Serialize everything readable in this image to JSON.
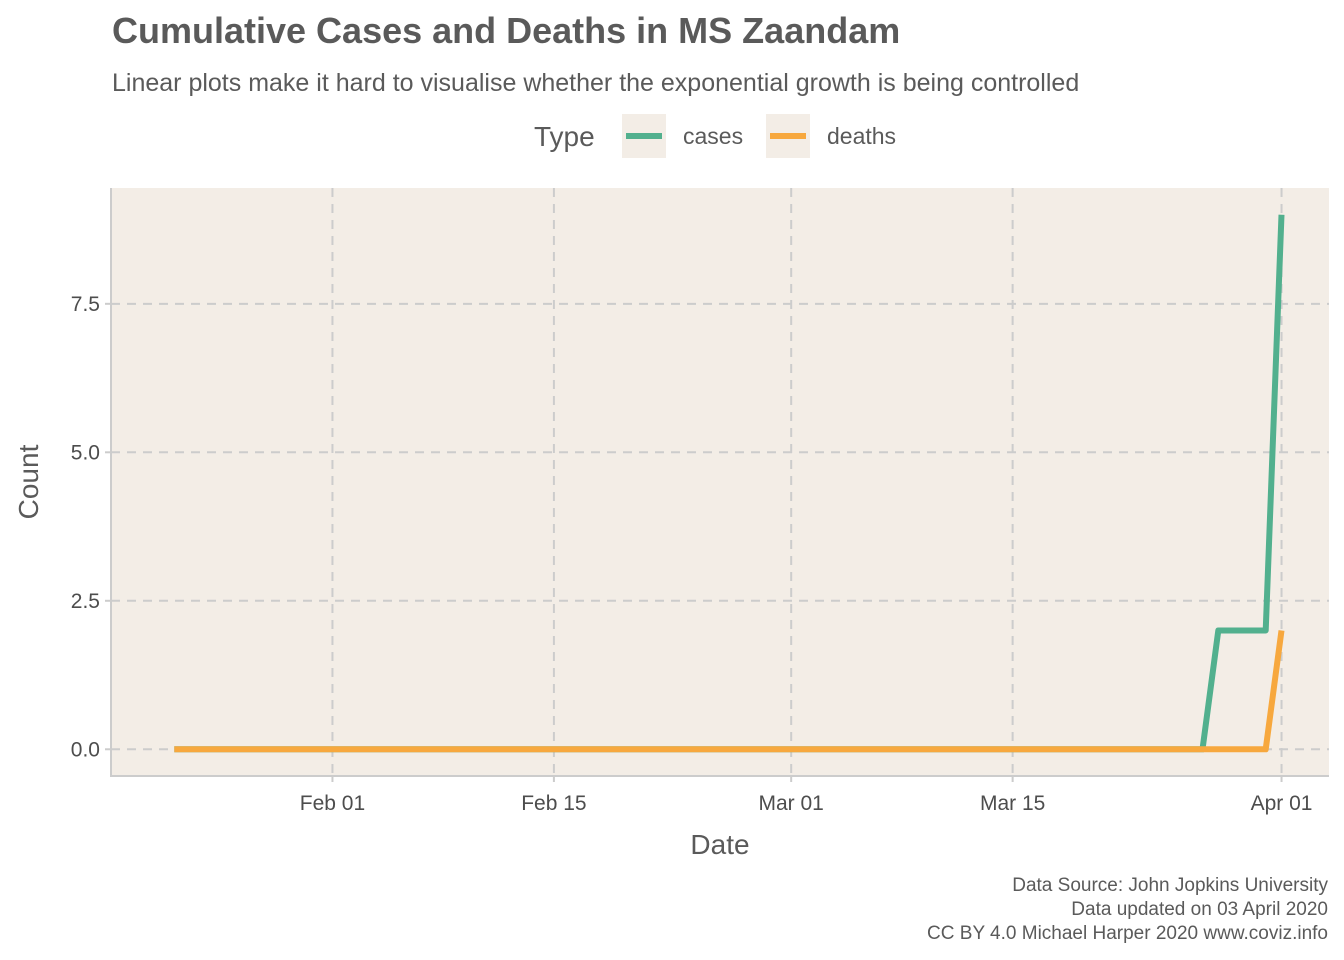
{
  "chart_data": {
    "type": "line",
    "title": "Cumulative Cases and Deaths in MS Zaandam",
    "subtitle": "Linear plots make it hard to visualise whether the exponential growth is being controlled",
    "xlabel": "Date",
    "ylabel": "Count",
    "legend": {
      "title": "Type",
      "placement": "top"
    },
    "x_ticks": [
      {
        "date": "2020-02-01",
        "label": "Feb 01"
      },
      {
        "date": "2020-02-15",
        "label": "Feb 15"
      },
      {
        "date": "2020-03-01",
        "label": "Mar 01"
      },
      {
        "date": "2020-03-15",
        "label": "Mar 15"
      },
      {
        "date": "2020-04-01",
        "label": "Apr 01"
      }
    ],
    "y_ticks": [
      {
        "value": 0,
        "label": "0.0"
      },
      {
        "value": 2.5,
        "label": "2.5"
      },
      {
        "value": 5,
        "label": "5.0"
      },
      {
        "value": 7.5,
        "label": "7.5"
      }
    ],
    "xlim": [
      "2020-01-18",
      "2020-04-04"
    ],
    "ylim": [
      -0.45,
      9.45
    ],
    "grid": true,
    "series": [
      {
        "name": "cases",
        "color": "#52b08e",
        "points": [
          {
            "x": "2020-01-22",
            "y": 0
          },
          {
            "x": "2020-03-27",
            "y": 0
          },
          {
            "x": "2020-03-28",
            "y": 2
          },
          {
            "x": "2020-03-31",
            "y": 2
          },
          {
            "x": "2020-04-01",
            "y": 9
          }
        ]
      },
      {
        "name": "deaths",
        "color": "#f7a83e",
        "points": [
          {
            "x": "2020-01-22",
            "y": 0
          },
          {
            "x": "2020-03-31",
            "y": 0
          },
          {
            "x": "2020-04-01",
            "y": 2
          }
        ]
      }
    ],
    "caption": [
      "Data Source: John Jopkins University",
      "Data updated on 03 April 2020",
      "CC BY 4.0 Michael Harper 2020 www.coviz.info"
    ],
    "colors": {
      "panel_background": "#f3ede6",
      "grid": "#cccccc",
      "axis": "#cccccc"
    }
  }
}
